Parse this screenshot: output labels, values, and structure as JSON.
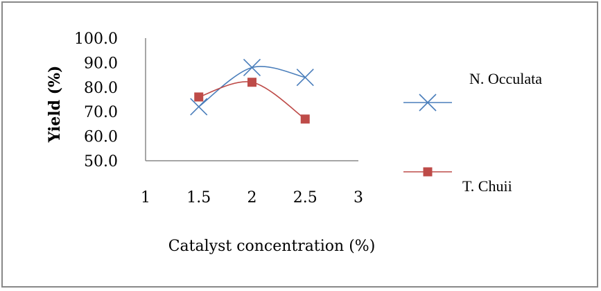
{
  "chart_data": {
    "type": "line",
    "title": "",
    "xlabel": "Catalyst concentration (%)",
    "ylabel": "Yield (%)",
    "xlim": [
      1,
      3
    ],
    "ylim": [
      50,
      100
    ],
    "x_ticks": [
      "1",
      "1.5",
      "2",
      "2.5",
      "3"
    ],
    "y_ticks": [
      "50.0",
      "60.0",
      "70.0",
      "80.0",
      "90.0",
      "100.0"
    ],
    "grid": false,
    "legend_position": "right",
    "series": [
      {
        "name": "N. Occulata",
        "marker": "x-cross",
        "color": "#4a7ebb",
        "x": [
          1.5,
          2,
          2.5
        ],
        "y": [
          72,
          88,
          84
        ]
      },
      {
        "name": "T. Chuii",
        "marker": "square",
        "color": "#be4b48",
        "x": [
          1.5,
          2,
          2.5
        ],
        "y": [
          76,
          82,
          67
        ]
      }
    ]
  }
}
